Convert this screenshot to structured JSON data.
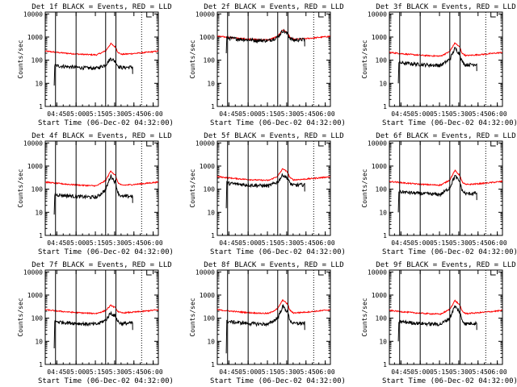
{
  "figure": {
    "title_template": "Det {det}f BLACK = Events, RED = LLD"
  },
  "chart_data": [
    {
      "type": "line",
      "det": "1",
      "title": "Det 1f BLACK = Events, RED = LLD",
      "ylabel": "Counts/sec",
      "xlabel": "Start Time (06-Dec-02 04:32:00)",
      "y_tick_labels": [
        "1",
        "10",
        "100",
        "1000",
        "10000"
      ],
      "x_tick_labels": [
        "04:45",
        "05:00",
        "05:15",
        "05:30",
        "05:45",
        "06:00"
      ],
      "ylim": [
        1,
        12000
      ],
      "xlim_minutes": [
        4,
        92
      ],
      "black_start": 11,
      "series": [
        {
          "name": "Events",
          "color": "#000000",
          "peak": 120,
          "base": 45,
          "start_level": 8
        },
        {
          "name": "LLD",
          "color": "#ff0000",
          "peak": 520,
          "base": 170
        }
      ],
      "solid_lines": [
        12,
        28,
        51,
        59
      ],
      "dotted_lines": [
        79
      ],
      "bracket": 83
    },
    {
      "type": "line",
      "det": "2",
      "title": "Det 2f BLACK = Events, RED = LLD",
      "ylabel": "Counts/sec",
      "xlabel": "Start Time (06-Dec-02 04:32:00)",
      "y_tick_labels": [
        "1",
        "10",
        "100",
        "1000",
        "10000"
      ],
      "x_tick_labels": [
        "04:45",
        "05:00",
        "05:15",
        "05:30",
        "05:45",
        "06:00"
      ],
      "ylim": [
        1,
        12000
      ],
      "xlim_minutes": [
        4,
        92
      ],
      "black_start": 11,
      "series": [
        {
          "name": "Events",
          "color": "#000000",
          "peak": 1900,
          "base": 700,
          "start_level": 200
        },
        {
          "name": "LLD",
          "color": "#ff0000",
          "peak": 2100,
          "base": 750
        }
      ],
      "solid_lines": [
        12,
        28,
        51,
        59
      ],
      "dotted_lines": [
        79
      ],
      "bracket": 83
    },
    {
      "type": "line",
      "det": "3",
      "title": "Det 3f BLACK = Events, RED = LLD",
      "ylabel": "Counts/sec",
      "xlabel": "Start Time (06-Dec-02 04:32:00)",
      "y_tick_labels": [
        "1",
        "10",
        "100",
        "1000",
        "10000"
      ],
      "x_tick_labels": [
        "04:45",
        "05:00",
        "05:15",
        "05:30",
        "05:45",
        "06:00"
      ],
      "ylim": [
        1,
        12000
      ],
      "xlim_minutes": [
        4,
        92
      ],
      "black_start": 11,
      "series": [
        {
          "name": "Events",
          "color": "#000000",
          "peak": 330,
          "base": 60,
          "start_level": 10
        },
        {
          "name": "LLD",
          "color": "#ff0000",
          "peak": 560,
          "base": 150
        }
      ],
      "solid_lines": [
        12,
        28,
        51,
        59
      ],
      "dotted_lines": [
        79
      ],
      "bracket": 83
    },
    {
      "type": "line",
      "det": "4",
      "title": "Det 4f BLACK = Events, RED = LLD",
      "ylabel": "Counts/sec",
      "xlabel": "Start Time (06-Dec-02 04:32:00)",
      "y_tick_labels": [
        "1",
        "10",
        "100",
        "1000",
        "10000"
      ],
      "x_tick_labels": [
        "04:45",
        "05:00",
        "05:15",
        "05:30",
        "05:45",
        "06:00"
      ],
      "ylim": [
        1,
        12000
      ],
      "xlim_minutes": [
        4,
        92
      ],
      "black_start": 11,
      "series": [
        {
          "name": "Events",
          "color": "#000000",
          "peak": 380,
          "base": 45,
          "start_level": 8
        },
        {
          "name": "LLD",
          "color": "#ff0000",
          "peak": 620,
          "base": 140
        }
      ],
      "solid_lines": [
        12,
        28,
        51,
        59
      ],
      "dotted_lines": [
        79
      ],
      "bracket": 83
    },
    {
      "type": "line",
      "det": "5",
      "title": "Det 5f BLACK = Events, RED = LLD",
      "ylabel": "Counts/sec",
      "xlabel": "Start Time (06-Dec-02 04:32:00)",
      "y_tick_labels": [
        "1",
        "10",
        "100",
        "1000",
        "10000"
      ],
      "x_tick_labels": [
        "04:45",
        "05:00",
        "05:15",
        "05:30",
        "05:45",
        "06:00"
      ],
      "ylim": [
        1,
        12000
      ],
      "xlim_minutes": [
        4,
        92
      ],
      "black_start": 11,
      "series": [
        {
          "name": "Events",
          "color": "#000000",
          "peak": 420,
          "base": 140,
          "start_level": 15
        },
        {
          "name": "LLD",
          "color": "#ff0000",
          "peak": 780,
          "base": 240
        }
      ],
      "solid_lines": [
        12,
        28,
        51,
        59
      ],
      "dotted_lines": [
        79
      ],
      "bracket": 83
    },
    {
      "type": "line",
      "det": "6",
      "title": "Det 6f BLACK = Events, RED = LLD",
      "ylabel": "Counts/sec",
      "xlabel": "Start Time (06-Dec-02 04:32:00)",
      "y_tick_labels": [
        "1",
        "10",
        "100",
        "1000",
        "10000"
      ],
      "x_tick_labels": [
        "04:45",
        "05:00",
        "05:15",
        "05:30",
        "05:45",
        "06:00"
      ],
      "ylim": [
        1,
        12000
      ],
      "xlim_minutes": [
        4,
        92
      ],
      "black_start": 11,
      "series": [
        {
          "name": "Events",
          "color": "#000000",
          "peak": 380,
          "base": 60,
          "start_level": 10
        },
        {
          "name": "LLD",
          "color": "#ff0000",
          "peak": 640,
          "base": 150
        }
      ],
      "solid_lines": [
        12,
        28,
        51,
        59
      ],
      "dotted_lines": [
        79
      ],
      "bracket": 83
    },
    {
      "type": "line",
      "det": "7",
      "title": "Det 7f BLACK = Events, RED = LLD",
      "ylabel": "Counts/sec",
      "xlabel": "Start Time (06-Dec-02 04:32:00)",
      "y_tick_labels": [
        "1",
        "10",
        "100",
        "1000",
        "10000"
      ],
      "x_tick_labels": [
        "04:45",
        "05:00",
        "05:15",
        "05:30",
        "05:45",
        "06:00"
      ],
      "ylim": [
        1,
        12000
      ],
      "xlim_minutes": [
        4,
        92
      ],
      "black_start": 11,
      "series": [
        {
          "name": "Events",
          "color": "#000000",
          "peak": 170,
          "base": 55,
          "start_level": 5
        },
        {
          "name": "LLD",
          "color": "#ff0000",
          "peak": 360,
          "base": 160
        }
      ],
      "solid_lines": [
        12,
        28,
        51,
        59
      ],
      "dotted_lines": [
        79
      ],
      "bracket": 83
    },
    {
      "type": "line",
      "det": "8",
      "title": "Det 8f BLACK = Events, RED = LLD",
      "ylabel": "Counts/sec",
      "xlabel": "Start Time (06-Dec-02 04:32:00)",
      "y_tick_labels": [
        "1",
        "10",
        "100",
        "1000",
        "10000"
      ],
      "x_tick_labels": [
        "04:45",
        "05:00",
        "05:15",
        "05:30",
        "05:45",
        "06:00"
      ],
      "ylim": [
        1,
        12000
      ],
      "xlim_minutes": [
        4,
        92
      ],
      "black_start": 11,
      "series": [
        {
          "name": "Events",
          "color": "#000000",
          "peak": 330,
          "base": 55,
          "start_level": 3
        },
        {
          "name": "LLD",
          "color": "#ff0000",
          "peak": 620,
          "base": 160
        }
      ],
      "solid_lines": [
        12,
        28,
        51,
        59
      ],
      "dotted_lines": [
        79
      ],
      "bracket": 83
    },
    {
      "type": "line",
      "det": "9",
      "title": "Det 9f BLACK = Events, RED = LLD",
      "ylabel": "Counts/sec",
      "xlabel": "Start Time (06-Dec-02 04:32:00)",
      "y_tick_labels": [
        "1",
        "10",
        "100",
        "1000",
        "10000"
      ],
      "x_tick_labels": [
        "04:45",
        "05:00",
        "05:15",
        "05:30",
        "05:45",
        "06:00"
      ],
      "ylim": [
        1,
        12000
      ],
      "xlim_minutes": [
        4,
        92
      ],
      "black_start": 11,
      "series": [
        {
          "name": "Events",
          "color": "#000000",
          "peak": 330,
          "base": 55,
          "start_level": 10
        },
        {
          "name": "LLD",
          "color": "#ff0000",
          "peak": 580,
          "base": 150
        }
      ],
      "solid_lines": [
        12,
        28,
        51,
        59
      ],
      "dotted_lines": [
        79
      ],
      "bracket": 83
    }
  ]
}
